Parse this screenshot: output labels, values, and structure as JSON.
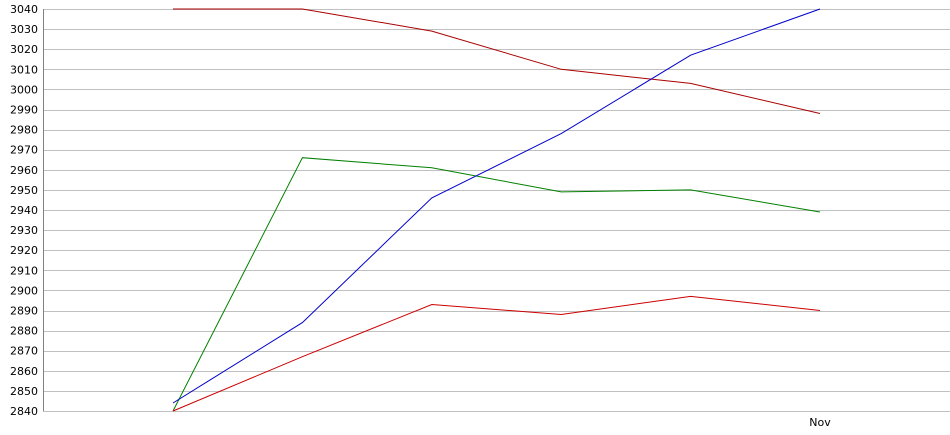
{
  "chart_data": {
    "type": "line",
    "title": "",
    "xlabel": "",
    "ylabel": "",
    "x_count": 6,
    "x_tick_labels": [
      "",
      "",
      "",
      "",
      "",
      "Nov"
    ],
    "ylim": [
      2840,
      3040
    ],
    "y_ticks": [
      2840,
      2850,
      2860,
      2870,
      2880,
      2890,
      2900,
      2910,
      2920,
      2930,
      2940,
      2950,
      2960,
      2970,
      2980,
      2990,
      3000,
      3010,
      3020,
      3030,
      3040
    ],
    "grid": true,
    "series": [
      {
        "color": "#aa0000",
        "values": [
          3040,
          3040,
          3029,
          3010,
          3003,
          2988
        ]
      },
      {
        "color": "#008000",
        "values": [
          2840,
          2966,
          2961,
          2949,
          2950,
          2939
        ]
      },
      {
        "color": "#0000cc",
        "values": [
          2844,
          2884,
          2946,
          2978,
          3017,
          3040
        ]
      },
      {
        "color": "#cc0000",
        "values": [
          2840,
          2867,
          2893,
          2888,
          2897,
          2890
        ]
      }
    ],
    "colors": {
      "grid": "#c0c0c0",
      "axis": "#808080",
      "background": "#ffffff"
    }
  }
}
